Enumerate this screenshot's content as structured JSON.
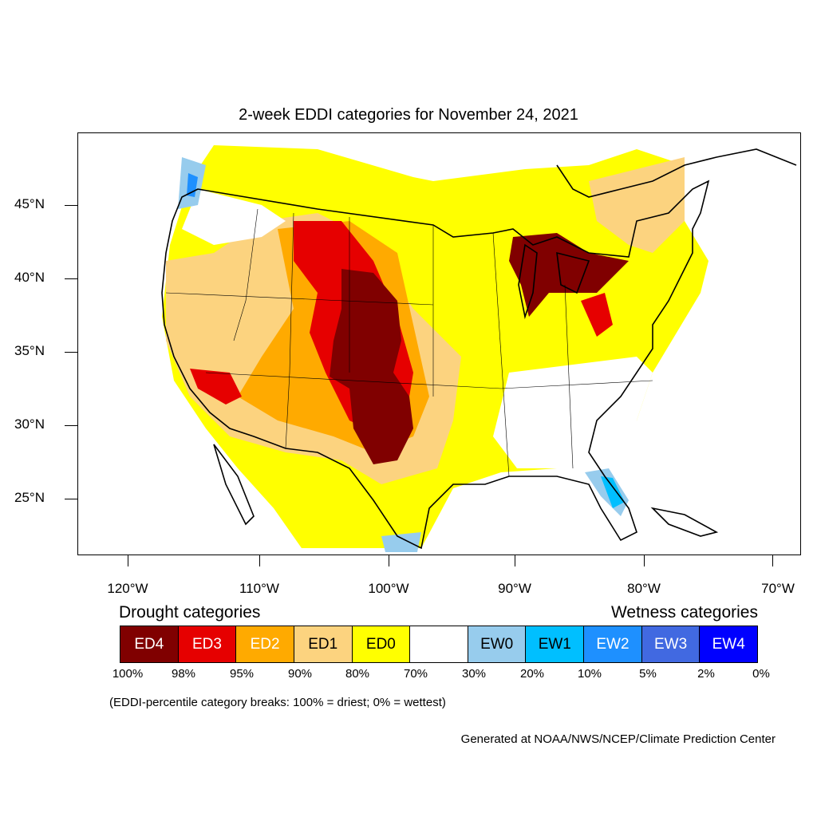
{
  "title": "2-week EDDI categories for November 24, 2021",
  "map": {
    "lon_range": [
      -124.5,
      -68.5
    ],
    "lat_range": [
      21.0,
      49.8
    ],
    "lat_labels": [
      "45°N",
      "40°N",
      "35°N",
      "30°N",
      "25°N"
    ],
    "lon_labels": [
      "120°W",
      "110°W",
      "100°W",
      "90°W",
      "80°W",
      "70°W"
    ]
  },
  "legend": {
    "drought_heading": "Drought categories",
    "wetness_heading": "Wetness categories",
    "categories": [
      {
        "label": "ED4",
        "color": "#800000",
        "text_color": "#ffffff"
      },
      {
        "label": "ED3",
        "color": "#e60000",
        "text_color": "#ffffff"
      },
      {
        "label": "ED2",
        "color": "#ffaa00",
        "text_color": "#ffffff"
      },
      {
        "label": "ED1",
        "color": "#fcd37f",
        "text_color": "#000000"
      },
      {
        "label": "ED0",
        "color": "#ffff00",
        "text_color": "#000000"
      },
      {
        "label": "",
        "color": "#ffffff",
        "text_color": "#000000"
      },
      {
        "label": "EW0",
        "color": "#97cced",
        "text_color": "#000000"
      },
      {
        "label": "EW1",
        "color": "#00bfff",
        "text_color": "#000000"
      },
      {
        "label": "EW2",
        "color": "#1e90ff",
        "text_color": "#ffffff"
      },
      {
        "label": "EW3",
        "color": "#4169e1",
        "text_color": "#ffffff"
      },
      {
        "label": "EW4",
        "color": "#0000ff",
        "text_color": "#ffffff"
      }
    ],
    "breaks": [
      "100%",
      "98%",
      "95%",
      "90%",
      "80%",
      "70%",
      "30%",
      "20%",
      "10%",
      "5%",
      "2%",
      "0%"
    ]
  },
  "note": "(EDDI-percentile category breaks: 100% = driest; 0% = wettest)",
  "credit": "Generated at NOAA/NWS/NCEP/Climate Prediction Center"
}
